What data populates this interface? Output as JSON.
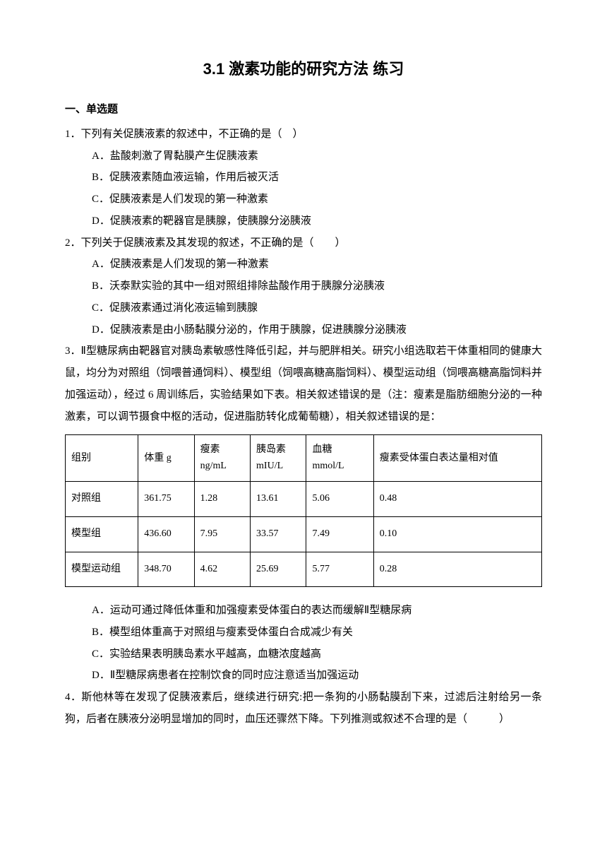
{
  "title": "3.1 激素功能的研究方法 练习",
  "section_header": "一、单选题",
  "q1": {
    "stem": "1．下列有关促胰液素的叙述中，不正确的是（　）",
    "a": "A．盐酸刺激了胃黏膜产生促胰液素",
    "b": "B．促胰液素随血液运输，作用后被灭活",
    "c": "C．促胰液素是人们发现的第一种激素",
    "d": "D．促胰液素的靶器官是胰腺，使胰腺分泌胰液"
  },
  "q2": {
    "stem": "2．下列关于促胰液素及其发现的叙述，不正确的是（　　）",
    "a": "A．促胰液素是人们发现的第一种激素",
    "b": "B．沃泰默实验的其中一组对照组排除盐酸作用于胰腺分泌胰液",
    "c": "C．促胰液素通过消化液运输到胰腺",
    "d": "D．促胰液素是由小肠黏膜分泌的，作用于胰腺，促进胰腺分泌胰液"
  },
  "q3": {
    "stem": "3．Ⅱ型糖尿病由靶器官对胰岛素敏感性降低引起，并与肥胖相关。研究小组选取若干体重相同的健康大鼠，均分为对照组（饲喂普通饲料）、模型组（饲喂高糖高脂饲料）、模型运动组（饲喂高糖高脂饲料并加强运动），经过 6 周训练后，实验结果如下表。相关叙述错误的是（注：瘦素是脂肪细胞分泌的一种激素，可以调节摄食中枢的活动，促进脂肪转化成葡萄糖），相关叙述错误的是：",
    "a": "A．运动可通过降低体重和加强瘦素受体蛋白的表达而缓解Ⅱ型糖尿病",
    "b": "B．模型组体重高于对照组与瘦素受体蛋白合成减少有关",
    "c": "C．实验结果表明胰岛素水平越高，血糖浓度越高",
    "d": "D．Ⅱ型糖尿病患者在控制饮食的同时应注意适当加强运动"
  },
  "table": {
    "headers": {
      "h1": "组别",
      "h2": "体重 g",
      "h3_l1": "瘦素",
      "h3_l2": "ng/mL",
      "h4_l1": "胰岛素",
      "h4_l2": "mIU/L",
      "h5_l1": "血糖",
      "h5_l2": "mmol/L",
      "h6": "瘦素受体蛋白表达量相对值"
    },
    "rows": [
      {
        "c1": "对照组",
        "c2": "361.75",
        "c3": "1.28",
        "c4": "13.61",
        "c5": "5.06",
        "c6": "0.48"
      },
      {
        "c1": "模型组",
        "c2": "436.60",
        "c3": "7.95",
        "c4": "33.57",
        "c5": "7.49",
        "c6": "0.10"
      },
      {
        "c1": "模型运动组",
        "c2": "348.70",
        "c3": "4.62",
        "c4": "25.69",
        "c5": "5.77",
        "c6": "0.28"
      }
    ]
  },
  "q4": {
    "stem": "4．斯他林等在发现了促胰液素后，继续进行研究:把一条狗的小肠黏膜刮下来，过滤后注射给另一条狗，后者在胰液分泌明显增加的同时，血压还骤然下降。下列推测或叙述不合理的是（　　　）"
  }
}
